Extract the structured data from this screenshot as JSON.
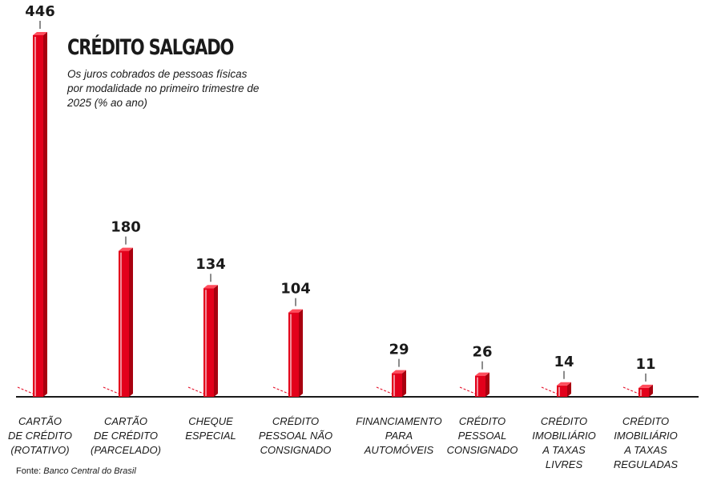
{
  "chart_data": {
    "type": "bar",
    "title": "CRÉDITO SALGADO",
    "subtitle": "Os juros cobrados de pessoas físicas por modalidade no primeiro trimestre de 2025 (% ao ano)",
    "categories": [
      [
        "CARTÃO",
        "DE CRÉDITO",
        "(ROTATIVO)"
      ],
      [
        "CARTÃO",
        "DE CRÉDITO",
        "(PARCELADO)"
      ],
      [
        "CHEQUE",
        "ESPECIAL"
      ],
      [
        "CRÉDITO",
        "PESSOAL NÃO",
        "CONSIGNADO"
      ],
      [
        "FINANCIAMENTO",
        "PARA",
        "AUTOMÓVEIS"
      ],
      [
        "CRÉDITO",
        "PESSOAL",
        "CONSIGNADO"
      ],
      [
        "CRÉDITO",
        "IMOBILIÁRIO",
        "A TAXAS",
        "LIVRES"
      ],
      [
        "CRÉDITO",
        "IMOBILIÁRIO",
        "A TAXAS",
        "REGULADAS"
      ]
    ],
    "values": [
      446,
      180,
      134,
      104,
      29,
      26,
      14,
      11
    ],
    "value_labels": [
      "446",
      "180",
      "134",
      "104",
      "29",
      "26",
      "14",
      "11"
    ],
    "ylim": [
      0,
      446
    ],
    "grid": false,
    "bar_color": "#e3001b"
  },
  "source": {
    "prefix": "Fonte:",
    "name": "Banco Central do Brasil"
  }
}
